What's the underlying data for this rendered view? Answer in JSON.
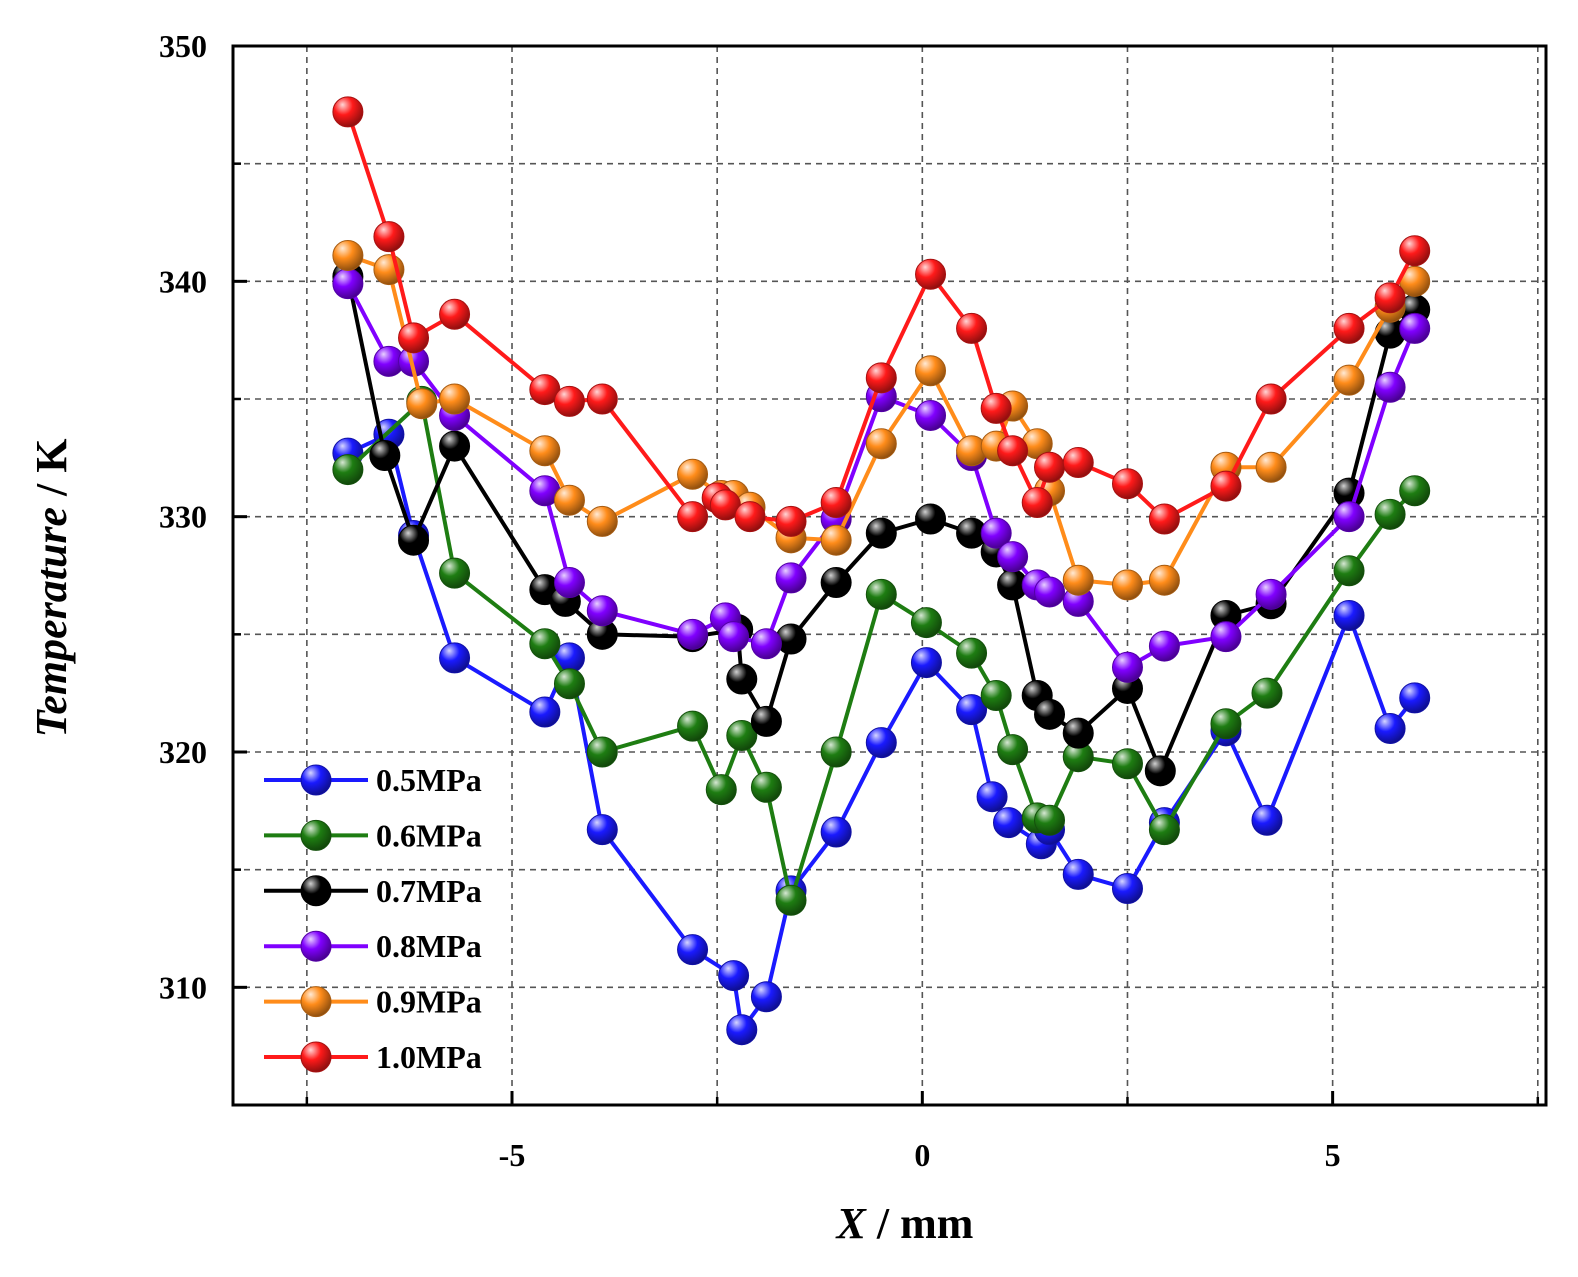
{
  "chart_data": {
    "type": "line",
    "title": "",
    "xlabel": "X / mm",
    "xlabel_parts": {
      "symbol": "X",
      "unit": " / mm"
    },
    "ylabel": "Temperature / K",
    "ylabel_parts": {
      "symbol": "Temperature",
      "unit": " / K"
    },
    "xlim": [
      -8.4,
      7.6
    ],
    "ylim": [
      305,
      350
    ],
    "xticks": [
      -5,
      0,
      5
    ],
    "xtick_labels": [
      "-5",
      "0",
      "5"
    ],
    "yticks": [
      310,
      320,
      330,
      340,
      350
    ],
    "ytick_labels": [
      "310",
      "320",
      "330",
      "340",
      "350"
    ],
    "grid": true,
    "legend_position": "bottom-left",
    "series": [
      {
        "name": "0.5MPa",
        "color": "#1a1aff",
        "x": [
          -7,
          -6.5,
          -6.2,
          -5.7,
          -4.6,
          -4.3,
          -3.9,
          -2.8,
          -2.3,
          -2.2,
          -1.9,
          -1.6,
          -1.05,
          -0.5,
          0.05,
          0.6,
          0.85,
          1.05,
          1.45,
          1.55,
          1.9,
          2.5,
          2.95,
          3.7,
          4.2,
          5.2,
          5.7,
          6.0
        ],
        "y": [
          332.7,
          333.5,
          329.2,
          324.0,
          321.7,
          324.0,
          316.7,
          311.6,
          310.5,
          308.2,
          309.6,
          314.1,
          316.6,
          320.4,
          323.8,
          321.8,
          318.1,
          317.0,
          316.1,
          316.7,
          314.8,
          314.2,
          317.0,
          320.9,
          317.1,
          325.8,
          321.0,
          322.3
        ]
      },
      {
        "name": "0.6MPa",
        "color": "#1e7d12",
        "x": [
          -7,
          -6.1,
          -5.7,
          -4.6,
          -4.3,
          -3.9,
          -2.8,
          -2.45,
          -2.2,
          -1.9,
          -1.6,
          -1.05,
          -0.5,
          0.05,
          0.6,
          0.9,
          1.1,
          1.4,
          1.55,
          1.9,
          2.5,
          2.95,
          3.7,
          4.2,
          5.2,
          5.7,
          6.0
        ],
        "y": [
          332.0,
          334.9,
          327.6,
          324.6,
          322.9,
          320.0,
          321.1,
          318.4,
          320.7,
          318.5,
          313.7,
          320.0,
          326.7,
          325.5,
          324.2,
          322.4,
          320.1,
          317.2,
          317.1,
          319.8,
          319.5,
          316.7,
          321.2,
          322.5,
          327.7,
          330.1,
          331.1
        ]
      },
      {
        "name": "0.7MPa",
        "color": "#000000",
        "x": [
          -7,
          -6.55,
          -6.2,
          -5.7,
          -4.6,
          -4.35,
          -3.9,
          -2.8,
          -2.25,
          -2.2,
          -1.9,
          -1.6,
          -1.05,
          -0.5,
          0.1,
          0.6,
          0.9,
          1.1,
          1.4,
          1.55,
          1.9,
          2.5,
          2.9,
          3.7,
          4.25,
          5.2,
          5.7,
          6.0
        ],
        "y": [
          340.2,
          332.6,
          329.0,
          333.0,
          326.9,
          326.4,
          325.0,
          324.9,
          325.2,
          323.1,
          321.3,
          324.8,
          327.2,
          329.3,
          329.9,
          329.3,
          328.5,
          327.1,
          322.4,
          321.6,
          320.8,
          322.7,
          319.2,
          325.8,
          326.3,
          331.0,
          337.8,
          338.8
        ]
      },
      {
        "name": "0.8MPa",
        "color": "#8000ff",
        "x": [
          -7,
          -6.5,
          -6.2,
          -5.7,
          -4.6,
          -4.3,
          -3.9,
          -2.8,
          -2.4,
          -2.3,
          -1.9,
          -1.6,
          -1.05,
          -0.5,
          0.1,
          0.6,
          0.9,
          1.1,
          1.4,
          1.55,
          1.9,
          2.5,
          2.95,
          3.7,
          4.25,
          5.2,
          5.7,
          6.0
        ],
        "y": [
          339.9,
          336.6,
          336.6,
          334.3,
          331.1,
          327.2,
          326.0,
          325.0,
          325.7,
          324.9,
          324.6,
          327.4,
          329.9,
          335.1,
          334.3,
          332.6,
          329.3,
          328.3,
          327.1,
          326.8,
          326.4,
          323.6,
          324.5,
          324.9,
          326.7,
          330.0,
          335.5,
          338.0
        ]
      },
      {
        "name": "0.9MPa",
        "color": "#ff8c1a",
        "x": [
          -7,
          -6.5,
          -6.1,
          -5.7,
          -4.6,
          -4.3,
          -3.9,
          -2.8,
          -2.45,
          -2.3,
          -2.1,
          -1.6,
          -1.05,
          -0.5,
          0.1,
          0.6,
          0.9,
          1.1,
          1.4,
          1.55,
          1.9,
          2.5,
          2.95,
          3.7,
          4.25,
          5.2,
          5.7,
          6.0
        ],
        "y": [
          341.1,
          340.5,
          334.8,
          335.0,
          332.8,
          330.7,
          329.8,
          331.8,
          330.9,
          330.9,
          330.4,
          329.1,
          329.0,
          333.1,
          336.2,
          332.8,
          333.0,
          334.7,
          333.1,
          331.1,
          327.3,
          327.1,
          327.3,
          332.1,
          332.1,
          335.8,
          338.9,
          340.0
        ]
      },
      {
        "name": "1.0MPa",
        "color": "#ff1a1a",
        "x": [
          -7,
          -6.5,
          -6.2,
          -5.7,
          -4.6,
          -4.3,
          -3.9,
          -2.8,
          -2.5,
          -2.4,
          -2.1,
          -1.6,
          -1.05,
          -0.5,
          0.1,
          0.6,
          0.9,
          1.1,
          1.4,
          1.55,
          1.9,
          2.5,
          2.95,
          3.7,
          4.25,
          5.2,
          5.7,
          6.0
        ],
        "y": [
          347.2,
          341.9,
          337.6,
          338.6,
          335.4,
          334.9,
          335.0,
          330.0,
          330.8,
          330.5,
          330.0,
          329.8,
          330.6,
          335.9,
          340.3,
          338.0,
          334.6,
          332.8,
          330.6,
          332.1,
          332.3,
          331.4,
          329.9,
          331.3,
          335.0,
          338.0,
          339.3,
          341.3
        ]
      }
    ]
  }
}
